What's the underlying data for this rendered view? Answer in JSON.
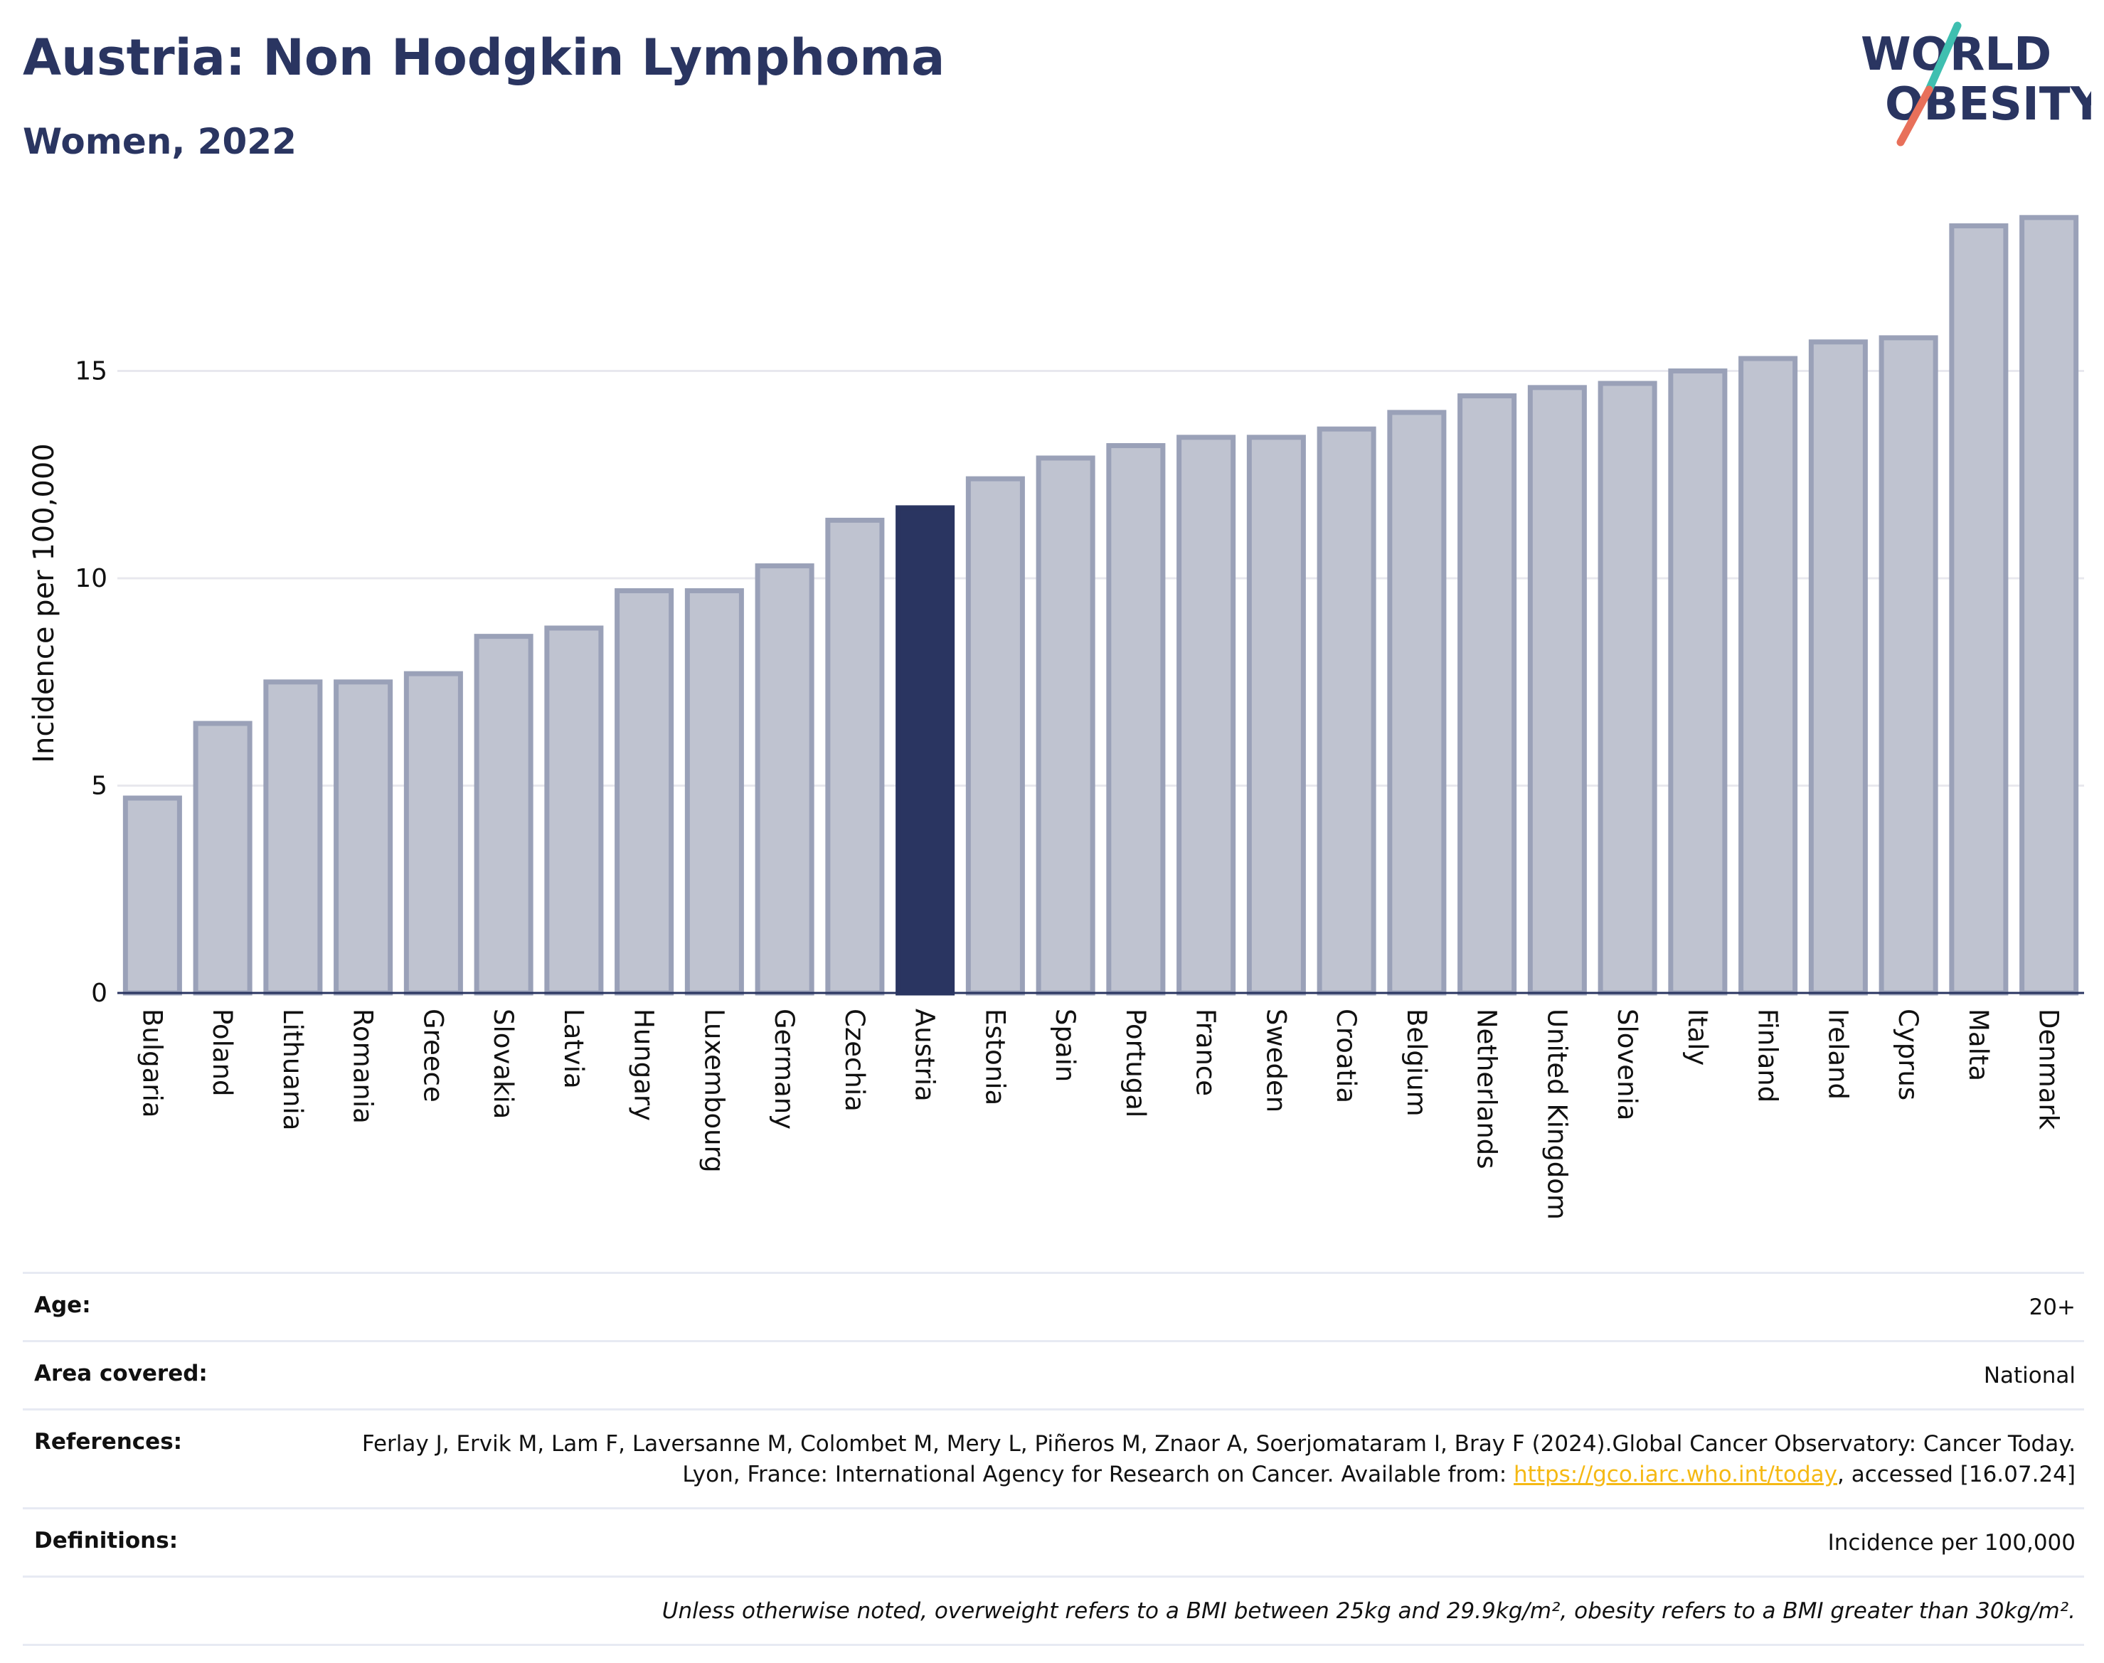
{
  "header": {
    "title": "Austria: Non Hodgkin Lymphoma",
    "subtitle": "Women, 2022"
  },
  "logo": {
    "line1": "WORLD",
    "line2": "OBESITY",
    "text_color": "#2a3561",
    "slash_top_color": "#3fbfb0",
    "slash_bottom_color": "#e8705a"
  },
  "chart_data": {
    "type": "bar",
    "title": "Austria: Non Hodgkin Lymphoma",
    "subtitle": "Women, 2022",
    "ylabel": "Incidence per 100,000",
    "xlabel": "",
    "ylim": [
      0,
      18.8
    ],
    "yticks": [
      0,
      5,
      10,
      15
    ],
    "grid": true,
    "highlight": "Austria",
    "colors": {
      "bar": "#bfc3d0",
      "bar_edge": "#9aa1b8",
      "highlight": "#2a3561",
      "grid": "#e8e8ee",
      "axis": "#2a3561"
    },
    "categories": [
      "Bulgaria",
      "Poland",
      "Lithuania",
      "Romania",
      "Greece",
      "Slovakia",
      "Latvia",
      "Hungary",
      "Luxembourg",
      "Germany",
      "Czechia",
      "Austria",
      "Estonia",
      "Spain",
      "Portugal",
      "France",
      "Sweden",
      "Croatia",
      "Belgium",
      "Netherlands",
      "United Kingdom",
      "Slovenia",
      "Italy",
      "Finland",
      "Ireland",
      "Cyprus",
      "Malta",
      "Denmark"
    ],
    "values": [
      4.7,
      6.5,
      7.5,
      7.5,
      7.7,
      8.6,
      8.8,
      9.7,
      9.7,
      10.3,
      11.4,
      11.7,
      12.4,
      12.9,
      13.2,
      13.4,
      13.4,
      13.6,
      14.0,
      14.4,
      14.6,
      14.7,
      15.0,
      15.3,
      15.7,
      15.8,
      18.5,
      18.7
    ]
  },
  "info": {
    "age_label": "Age:",
    "age_value": "20+",
    "area_label": "Area covered:",
    "area_value": "National",
    "references_label": "References:",
    "references_text": "Ferlay J, Ervik M, Lam F, Laversanne M, Colombet M, Mery L, Piñeros M, Znaor A, Soerjomataram I, Bray F (2024).Global Cancer Observatory: Cancer Today. Lyon, France: International Agency for Research on Cancer. Available from:",
    "references_link": "https://gco.iarc.who.int/today",
    "references_suffix": ", accessed [16.07.24]",
    "definitions_label": "Definitions:",
    "definitions_value": "Incidence per 100,000",
    "note": "Unless otherwise noted, overweight refers to a BMI between 25kg and 29.9kg/m², obesity refers to a BMI greater than 30kg/m²."
  }
}
